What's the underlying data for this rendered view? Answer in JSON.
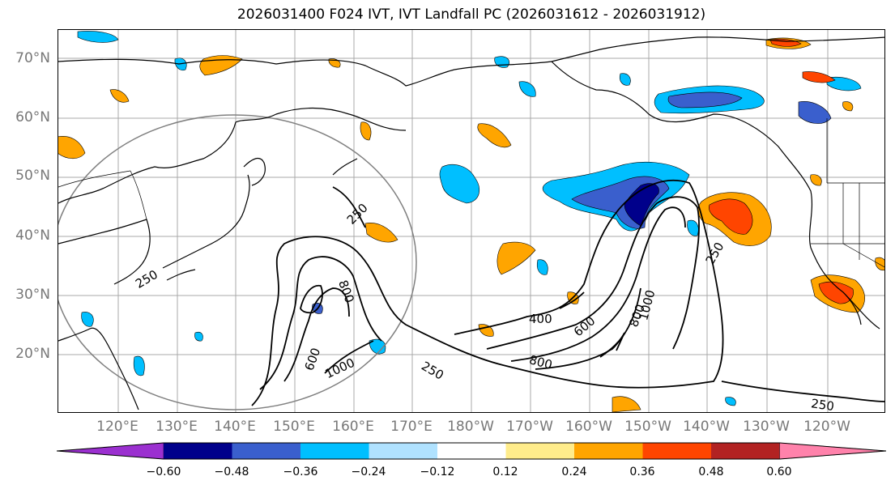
{
  "title": "2026031400 F024 IVT, IVT Landfall PC (2026031612 - 2026031912)",
  "lat_labels": [
    "70°N",
    "60°N",
    "50°N",
    "40°N",
    "30°N",
    "20°N"
  ],
  "lon_labels": [
    "120°E",
    "130°E",
    "140°E",
    "150°E",
    "160°E",
    "170°E",
    "180°W",
    "170°W",
    "160°W",
    "150°W",
    "140°W",
    "130°W",
    "120°W"
  ],
  "contour_labels": [
    "250",
    "250",
    "600",
    "800",
    "1000",
    "250",
    "400",
    "600",
    "800",
    "1000",
    "800",
    "250",
    "250"
  ],
  "colorbar": {
    "ticks": [
      "−0.60",
      "−0.48",
      "−0.36",
      "−0.24",
      "−0.12",
      "0.12",
      "0.24",
      "0.36",
      "0.48",
      "0.60"
    ],
    "colors": [
      "#9b30d0",
      "#00008b",
      "#3a5fcd",
      "#00bfff",
      "#b0e2ff",
      "#ffffff",
      "#ffec8b",
      "#ffa500",
      "#ff4500",
      "#b22222",
      "#ff82ab"
    ]
  }
}
